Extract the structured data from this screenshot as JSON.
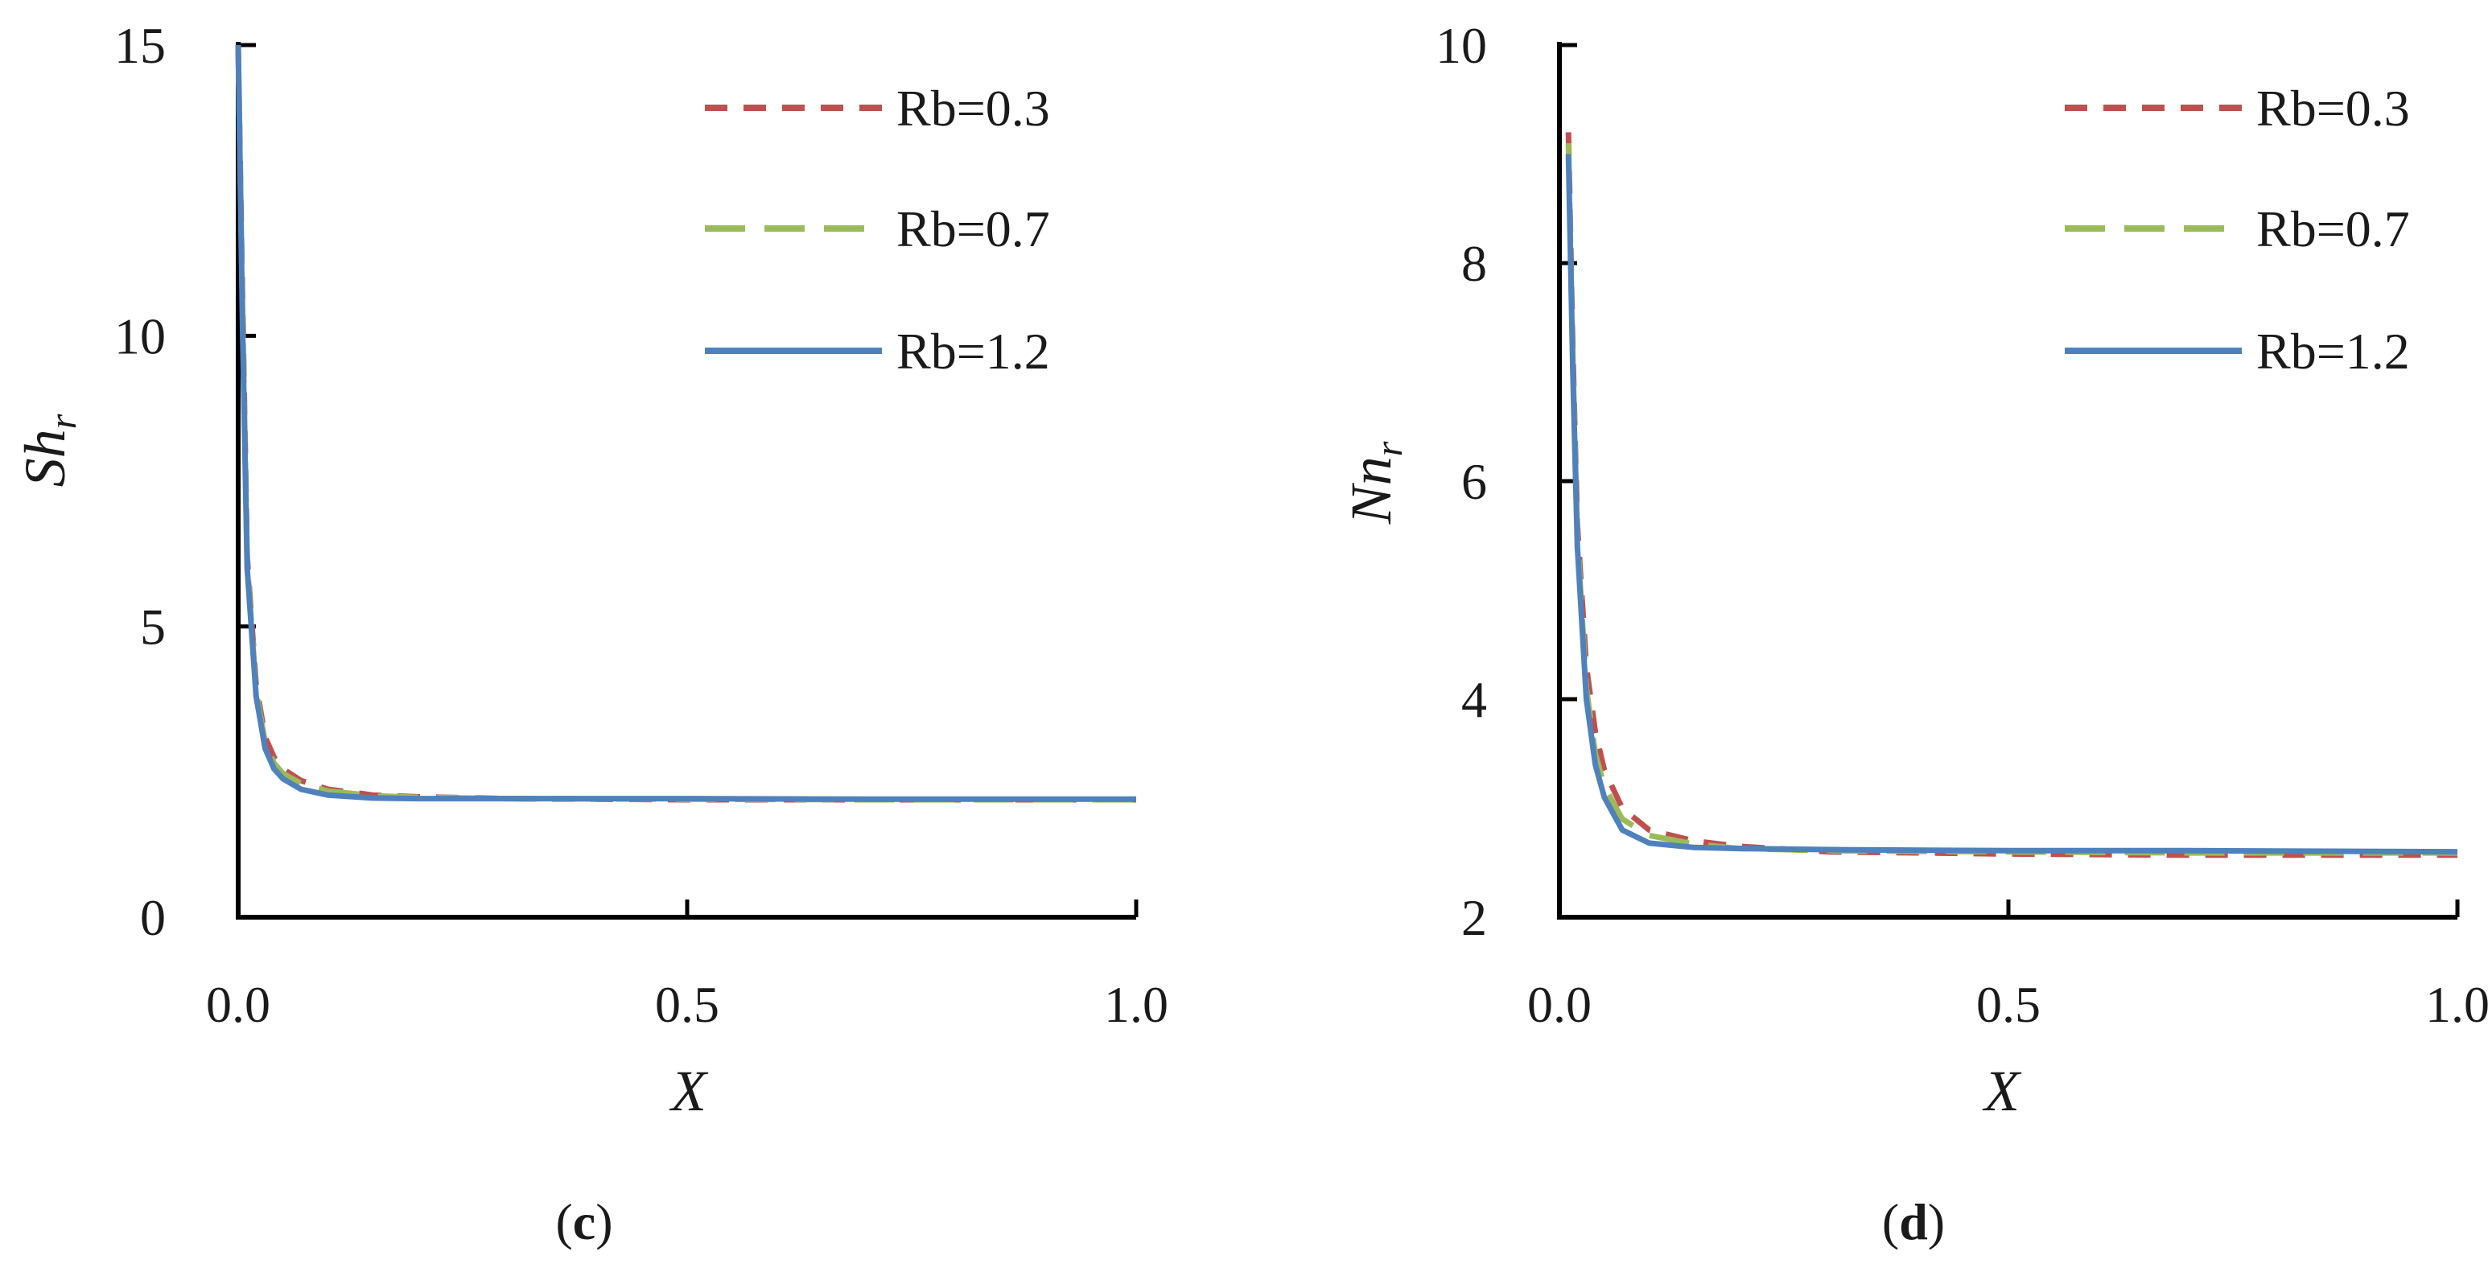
{
  "chart_data": [
    {
      "type": "line",
      "panel_label": {
        "open": "(",
        "letter": "c",
        "close": ")"
      },
      "xlabel": "X",
      "ylabel": {
        "base": "Sh",
        "sub": "r"
      },
      "xlim": [
        0,
        1
      ],
      "ylim": [
        0,
        15
      ],
      "xticks": [
        0.0,
        0.5,
        1.0
      ],
      "xtick_labels": [
        "0.0",
        "0.5",
        "1.0"
      ],
      "yticks": [
        0,
        5,
        10,
        15
      ],
      "ytick_labels": [
        "0",
        "5",
        "10",
        "15"
      ],
      "legend_position": "top-right",
      "grid": false,
      "series": [
        {
          "name": "Rb=0.3",
          "color": "#c0504d",
          "dash": "short-dash",
          "x": [
            0.0,
            0.005,
            0.01,
            0.02,
            0.03,
            0.04,
            0.05,
            0.07,
            0.1,
            0.15,
            0.2,
            0.3,
            0.5,
            0.7,
            1.0
          ],
          "y": [
            15.0,
            10.5,
            6.2,
            4.0,
            3.1,
            2.75,
            2.55,
            2.35,
            2.2,
            2.1,
            2.07,
            2.04,
            2.02,
            2.02,
            2.02
          ]
        },
        {
          "name": "Rb=0.7",
          "color": "#9bbb59",
          "dash": "long-dash",
          "x": [
            0.0,
            0.005,
            0.01,
            0.02,
            0.03,
            0.04,
            0.05,
            0.07,
            0.1,
            0.15,
            0.2,
            0.3,
            0.5,
            0.7,
            1.0
          ],
          "y": [
            15.0,
            10.3,
            6.1,
            3.9,
            3.0,
            2.65,
            2.47,
            2.3,
            2.17,
            2.09,
            2.06,
            2.04,
            2.03,
            2.02,
            2.02
          ]
        },
        {
          "name": "Rb=1.2",
          "color": "#4f81bd",
          "dash": "solid",
          "x": [
            0.0,
            0.005,
            0.01,
            0.02,
            0.03,
            0.04,
            0.05,
            0.07,
            0.1,
            0.15,
            0.2,
            0.3,
            0.5,
            0.7,
            1.0
          ],
          "y": [
            15.0,
            10.0,
            6.0,
            3.8,
            2.9,
            2.55,
            2.38,
            2.2,
            2.1,
            2.05,
            2.04,
            2.04,
            2.04,
            2.03,
            2.03
          ]
        }
      ]
    },
    {
      "type": "line",
      "panel_label": {
        "open": "(",
        "letter": "d",
        "close": ")"
      },
      "xlabel": "X",
      "ylabel": {
        "base": "Nn",
        "sub": "r"
      },
      "xlim": [
        0,
        1
      ],
      "ylim": [
        2,
        10
      ],
      "xticks": [
        0.0,
        0.5,
        1.0
      ],
      "xtick_labels": [
        "0.0",
        "0.5",
        "1.0"
      ],
      "yticks": [
        2,
        4,
        6,
        8,
        10
      ],
      "ytick_labels": [
        "2",
        "4",
        "6",
        "8",
        "10"
      ],
      "legend_position": "top-right",
      "grid": false,
      "series": [
        {
          "name": "Rb=0.3",
          "color": "#c0504d",
          "dash": "short-dash",
          "x": [
            0.01,
            0.015,
            0.02,
            0.03,
            0.04,
            0.05,
            0.07,
            0.1,
            0.15,
            0.2,
            0.3,
            0.5,
            0.7,
            1.0
          ],
          "y": [
            9.2,
            7.2,
            5.6,
            4.3,
            3.7,
            3.35,
            3.0,
            2.8,
            2.7,
            2.65,
            2.6,
            2.58,
            2.57,
            2.57
          ]
        },
        {
          "name": "Rb=0.7",
          "color": "#9bbb59",
          "dash": "long-dash",
          "x": [
            0.01,
            0.015,
            0.02,
            0.03,
            0.04,
            0.05,
            0.07,
            0.1,
            0.15,
            0.2,
            0.3,
            0.5,
            0.7,
            1.0
          ],
          "y": [
            9.1,
            7.1,
            5.5,
            4.1,
            3.5,
            3.2,
            2.9,
            2.75,
            2.67,
            2.63,
            2.61,
            2.6,
            2.59,
            2.59
          ]
        },
        {
          "name": "Rb=1.2",
          "color": "#4f81bd",
          "dash": "solid",
          "x": [
            0.01,
            0.015,
            0.02,
            0.03,
            0.04,
            0.05,
            0.07,
            0.1,
            0.15,
            0.2,
            0.3,
            0.5,
            0.7,
            1.0
          ],
          "y": [
            9.0,
            7.0,
            5.4,
            4.0,
            3.4,
            3.1,
            2.8,
            2.68,
            2.64,
            2.63,
            2.62,
            2.61,
            2.61,
            2.6
          ]
        }
      ]
    }
  ]
}
